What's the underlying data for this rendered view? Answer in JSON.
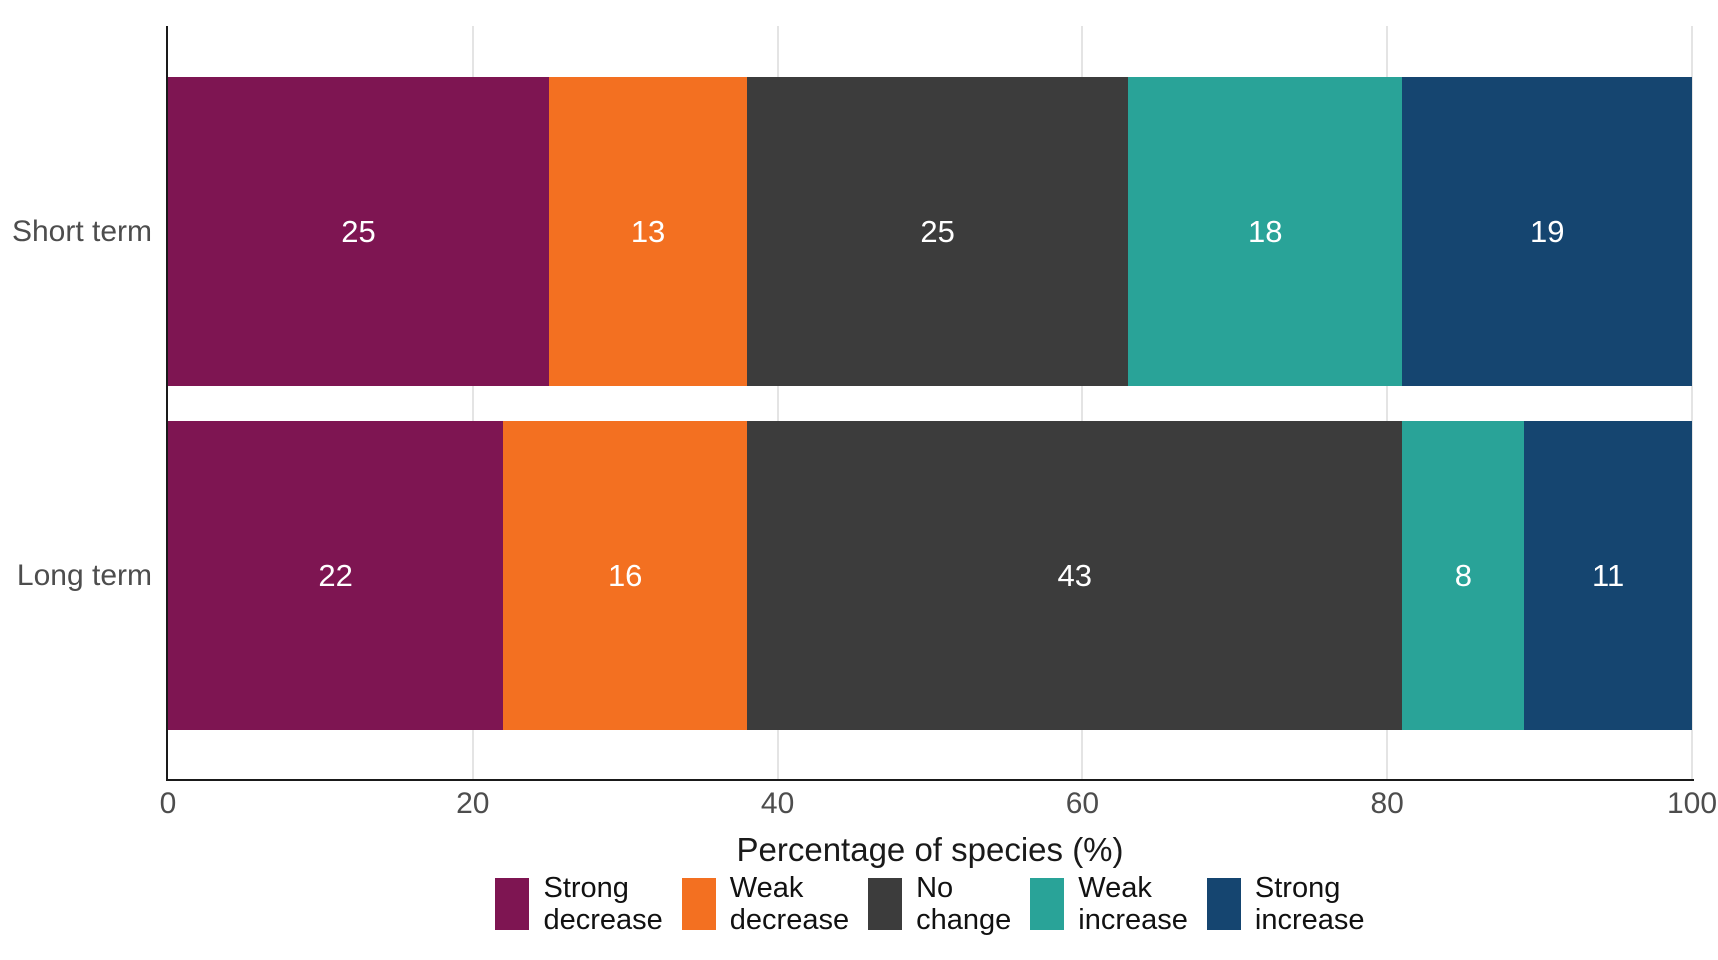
{
  "chart_data": {
    "type": "bar",
    "orientation": "horizontal",
    "stacked": true,
    "xlabel": "Percentage of species (%)",
    "xlim": [
      0,
      100
    ],
    "x_ticks": [
      0,
      20,
      40,
      60,
      80,
      100
    ],
    "grid": "major-vertical",
    "legend_position": "bottom",
    "categories": [
      "Short term",
      "Long term"
    ],
    "series": [
      {
        "name": "Strong decrease",
        "color": "#7E1552",
        "values": [
          25,
          22
        ]
      },
      {
        "name": "Weak decrease",
        "color": "#F37021",
        "values": [
          13,
          16
        ]
      },
      {
        "name": "No change",
        "color": "#3C3C3C",
        "values": [
          25,
          43
        ]
      },
      {
        "name": "Weak increase",
        "color": "#29A398",
        "values": [
          18,
          8
        ]
      },
      {
        "name": "Strong increase",
        "color": "#154570",
        "values": [
          19,
          11
        ]
      }
    ],
    "value_labels_shown": true,
    "colors": {
      "axis_line": "#1a1a1a",
      "gridline": "#e4e4e4",
      "tick_label_text": "#4d4d4d",
      "category_label_text": "#4d4d4d",
      "value_label_text": "#ffffff",
      "axis_title_text": "#1a1a1a",
      "legend_text": "#111111",
      "background": "#ffffff"
    }
  }
}
